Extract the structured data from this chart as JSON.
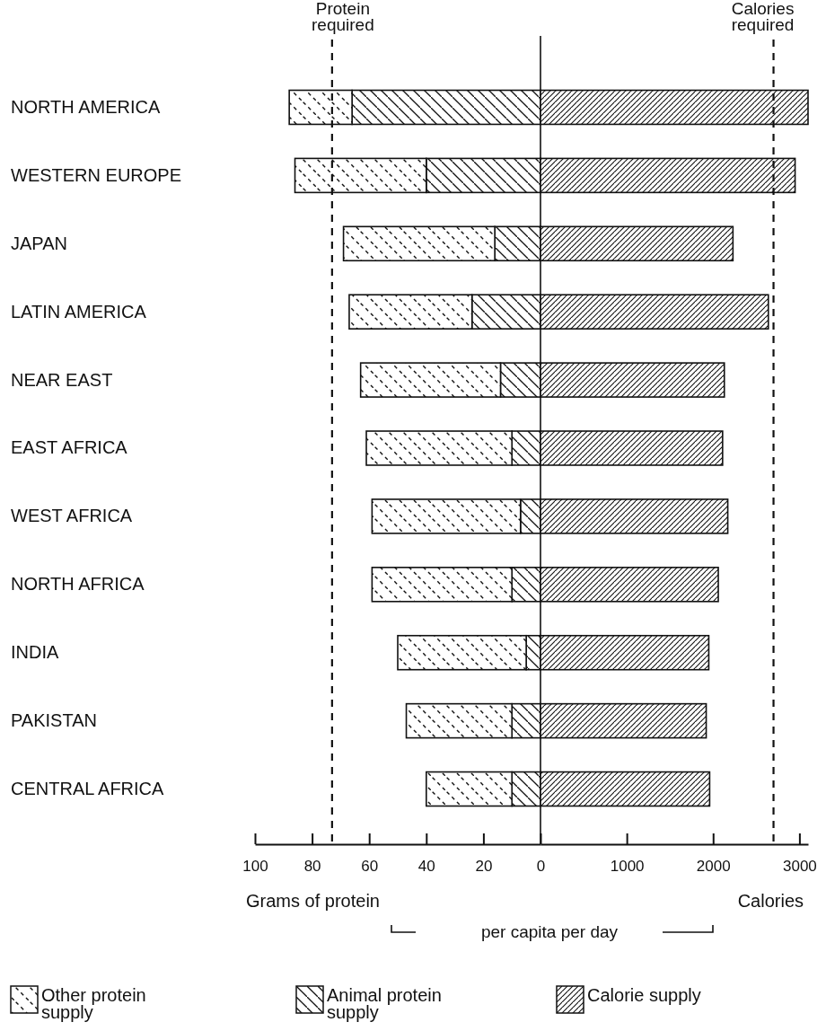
{
  "chart_data": [
    {
      "type": "bar",
      "orientation": "horizontal",
      "stacked": true,
      "categories": [
        "NORTH AMERICA",
        "WESTERN EUROPE",
        "JAPAN",
        "LATIN AMERICA",
        "NEAR EAST",
        "EAST AFRICA",
        "WEST AFRICA",
        "NORTH AFRICA",
        "INDIA",
        "PAKISTAN",
        "CENTRAL AFRICA"
      ],
      "series": [
        {
          "name": "Animal protein supply",
          "color": "#111111",
          "values": [
            66,
            40,
            16,
            24,
            14,
            10,
            7,
            10,
            5,
            10,
            10
          ]
        },
        {
          "name": "Other protein supply",
          "color": "#111111",
          "values": [
            22,
            46,
            53,
            43,
            49,
            51,
            52,
            49,
            45,
            37,
            30
          ]
        }
      ],
      "xlim": [
        100,
        0
      ],
      "xticks": [
        100,
        80,
        60,
        40,
        20,
        0
      ],
      "xlabel": "Grams of protein",
      "ref_lines": [
        {
          "axis": "x",
          "value": 73,
          "label": "Protein required",
          "line_style": "dashed"
        }
      ],
      "annotations": [
        "per capita per day"
      ],
      "legend": "bottom",
      "grid": false
    },
    {
      "type": "bar",
      "orientation": "horizontal",
      "categories": [
        "NORTH AMERICA",
        "WESTERN EUROPE",
        "JAPAN",
        "LATIN AMERICA",
        "NEAR EAST",
        "EAST AFRICA",
        "WEST AFRICA",
        "NORTH AFRICA",
        "INDIA",
        "PAKISTAN",
        "CENTRAL AFRICA"
      ],
      "series": [
        {
          "name": "Calorie supply",
          "color": "#111111",
          "values": [
            3100,
            2950,
            2230,
            2640,
            2130,
            2110,
            2170,
            2060,
            1950,
            1920,
            1960
          ]
        }
      ],
      "xlim": [
        0,
        3100
      ],
      "xticks": [
        1000,
        2000,
        3000
      ],
      "xlabel": "Calories",
      "ref_lines": [
        {
          "axis": "x",
          "value": 2700,
          "label": "Calories required",
          "line_style": "dashed"
        }
      ],
      "tick_labels": "x",
      "legend": "bottom",
      "grid": false
    }
  ]
}
